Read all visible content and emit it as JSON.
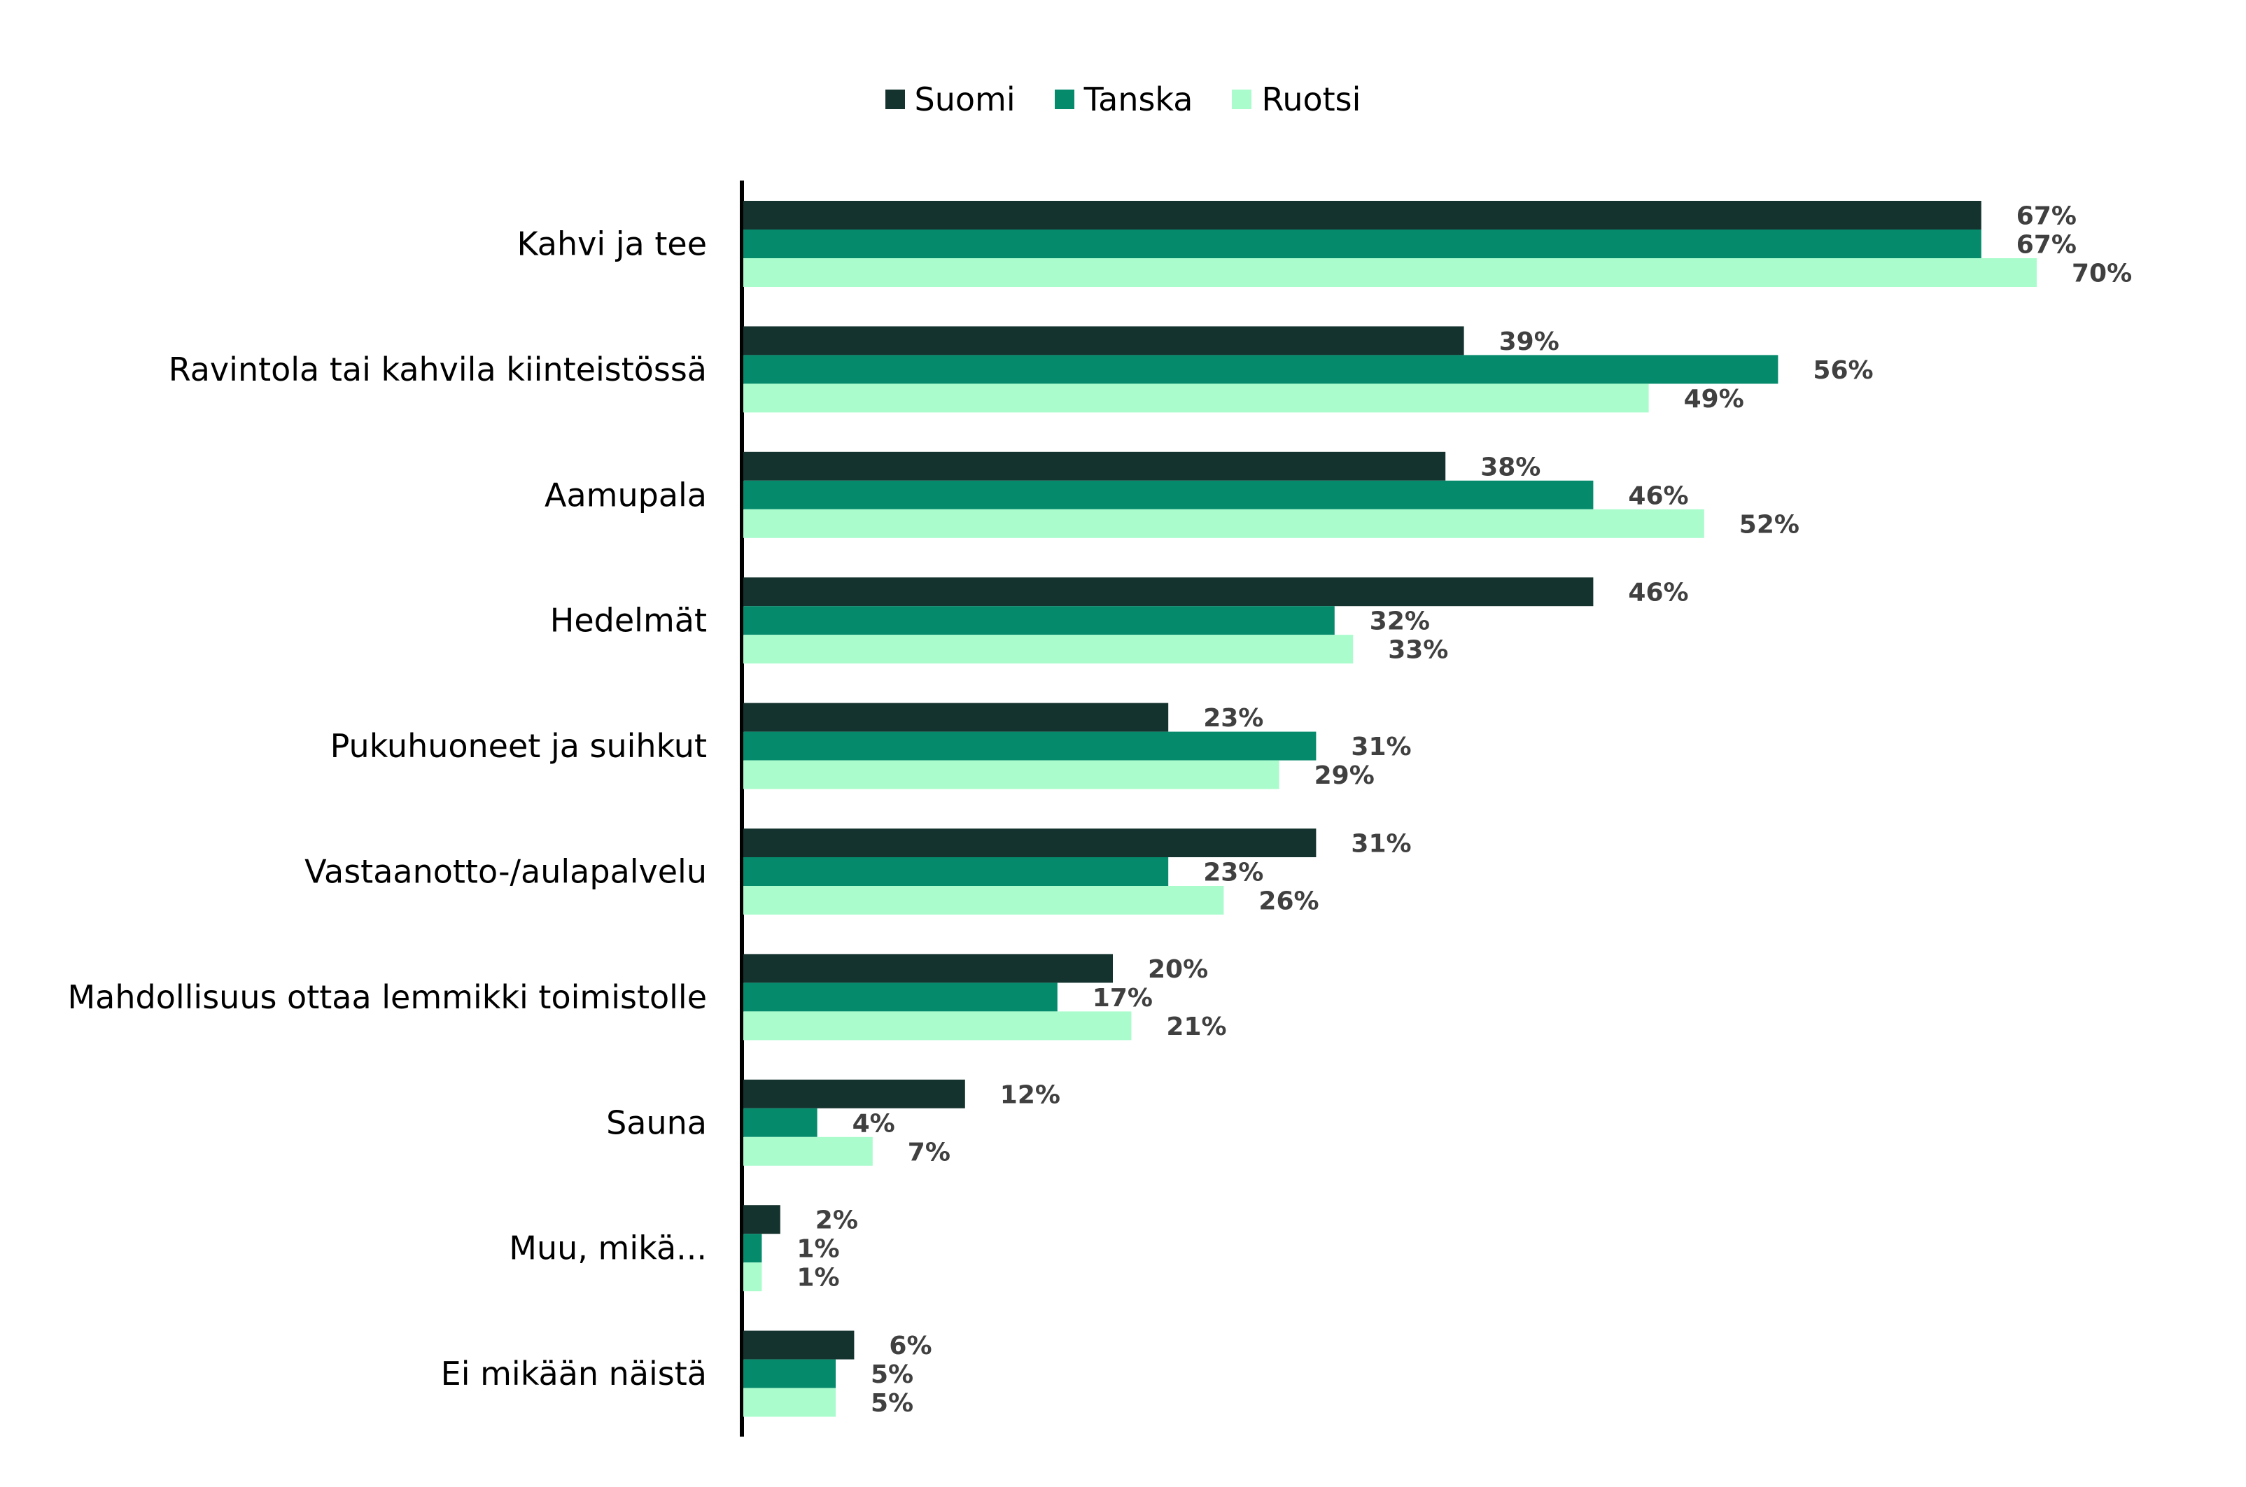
{
  "chart_data": {
    "type": "bar",
    "orientation": "horizontal",
    "categories": [
      "Kahvi ja tee",
      "Ravintola tai kahvila kiinteistössä",
      "Aamupala",
      "Hedelmät",
      "Pukuhuoneet ja suihkut",
      "Vastaanotto-/aulapalvelu",
      "Mahdollisuus ottaa lemmikki toimistolle",
      "Sauna",
      "Muu, mikä...",
      "Ei mikään näistä"
    ],
    "series": [
      {
        "name": "Suomi",
        "color": "#15332e",
        "values": [
          67,
          39,
          38,
          46,
          23,
          31,
          20,
          12,
          2,
          6
        ]
      },
      {
        "name": "Tanska",
        "color": "#058a6c",
        "values": [
          67,
          56,
          46,
          32,
          31,
          23,
          17,
          4,
          1,
          5
        ]
      },
      {
        "name": "Ruotsi",
        "color": "#aafccd",
        "values": [
          70,
          49,
          52,
          33,
          29,
          26,
          21,
          7,
          1,
          5
        ]
      }
    ],
    "value_suffix": "%",
    "xlim": [
      0,
      70
    ],
    "grid": false,
    "legend_position": "top-center",
    "title": "",
    "xlabel": "",
    "ylabel": ""
  }
}
